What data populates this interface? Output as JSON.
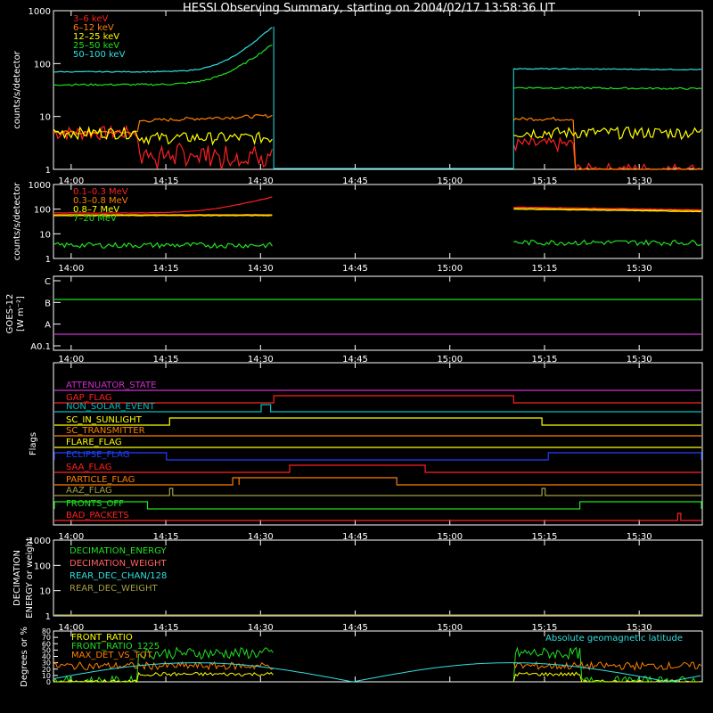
{
  "title": "HESSI Observing Summary, starting on 2004/02/17 13:58:36 UT",
  "colors": {
    "white": "#ffffff",
    "red": "#ff2020",
    "orange": "#ff8000",
    "yellow": "#ffff00",
    "green": "#20e020",
    "cyan": "#30e0e0",
    "magenta": "#d030d0",
    "blue": "#2040ff",
    "olive": "#a0a040",
    "pink": "#ff6060",
    "teal": "#00c0c0",
    "brightgreen": "#40ff40"
  },
  "time_ticks": [
    "14:00",
    "14:15",
    "14:30",
    "14:45",
    "15:00",
    "15:15",
    "15:30"
  ],
  "chart_data": [
    {
      "id": "panel1",
      "type": "line",
      "ylabel": "counts/s/detector",
      "yscale": "log",
      "ylim": [
        1,
        1000
      ],
      "ytick_labels": [
        "1",
        "10",
        "100",
        "1000"
      ],
      "legend": [
        {
          "name": "3–6 keV",
          "color": "#ff2020"
        },
        {
          "name": "6–12 keV",
          "color": "#ff8000"
        },
        {
          "name": "12–25 keV",
          "color": "#ffff00"
        },
        {
          "name": "25–50 keV",
          "color": "#20e020"
        },
        {
          "name": "50–100 keV",
          "color": "#30e0e0"
        }
      ]
    },
    {
      "id": "panel2",
      "type": "line",
      "ylabel": "counts/s/detector",
      "yscale": "log",
      "ylim": [
        1,
        1000
      ],
      "ytick_labels": [
        "1",
        "10",
        "100",
        "1000"
      ],
      "legend": [
        {
          "name": "0.1–0.3 MeV",
          "color": "#ff2020"
        },
        {
          "name": "0.3–0.8 MeV",
          "color": "#ff8000"
        },
        {
          "name": "0.8–7 MeV",
          "color": "#ffff00"
        },
        {
          "name": "7–20 MeV",
          "color": "#20e020"
        }
      ]
    },
    {
      "id": "panel3",
      "type": "line",
      "ylabel": "GOES-12",
      "ylabel2": "[W m⁻²]",
      "ytick_labels": [
        "A0.1",
        "A",
        "B",
        "C"
      ]
    },
    {
      "id": "panel4",
      "type": "line",
      "ylabel": "Flags",
      "flags": [
        {
          "name": "ATTENUATOR_STATE",
          "color": "#d030d0"
        },
        {
          "name": "GAP_FLAG",
          "color": "#ff2020"
        },
        {
          "name": "NON_SOLAR_EVENT",
          "color": "#00c0c0"
        },
        {
          "name": "SC_IN_SUNLIGHT",
          "color": "#ffff00"
        },
        {
          "name": "SC_TRANSMITTER",
          "color": "#ff8000"
        },
        {
          "name": "FLARE_FLAG",
          "color": "#ffff00"
        },
        {
          "name": "ECLIPSE_FLAG",
          "color": "#2040ff"
        },
        {
          "name": "SAA_FLAG",
          "color": "#ff2020"
        },
        {
          "name": "PARTICLE_FLAG",
          "color": "#ff8000"
        },
        {
          "name": "AAZ_FLAG",
          "color": "#a0a040"
        },
        {
          "name": "FRONTS_OFF",
          "color": "#20e020"
        },
        {
          "name": "BAD_PACKETS",
          "color": "#ff2020"
        }
      ]
    },
    {
      "id": "panel5",
      "type": "line",
      "ylabel": "DECIMATION",
      "ylabel2": "ENERGY or weight",
      "yscale": "log",
      "ylim": [
        1,
        1000
      ],
      "ytick_labels": [
        "1",
        "10",
        "100",
        "1000"
      ],
      "legend": [
        {
          "name": "DECIMATION_ENERGY",
          "color": "#20e020"
        },
        {
          "name": "DECIMATION_WEIGHT",
          "color": "#ff6060"
        },
        {
          "name": "REAR_DEC_CHAN/128",
          "color": "#30e0e0"
        },
        {
          "name": "REAR_DEC_WEIGHT",
          "color": "#a0a040"
        }
      ]
    },
    {
      "id": "panel6",
      "type": "line",
      "ylabel": "Degrees or %",
      "ylim": [
        0,
        80
      ],
      "ytick_labels": [
        "0",
        "10",
        "20",
        "30",
        "40",
        "50",
        "60",
        "70",
        "80"
      ],
      "legend": [
        {
          "name": "FRONT_RATIO",
          "color": "#ffff00"
        },
        {
          "name": "FRONT_RATIO_1225",
          "color": "#20e020"
        },
        {
          "name": "MAX_DET_VS_TOT",
          "color": "#ff8000"
        }
      ],
      "right_label": "Absolute geomagnetic latitude"
    }
  ]
}
